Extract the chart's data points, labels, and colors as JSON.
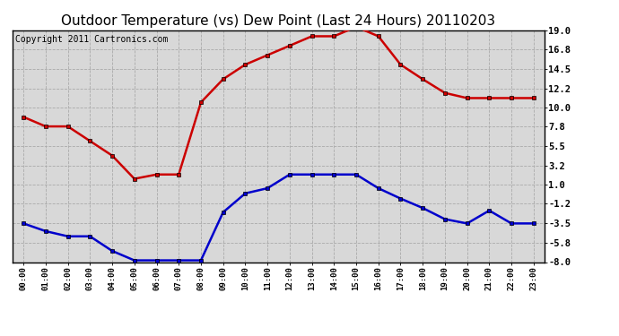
{
  "title": "Outdoor Temperature (vs) Dew Point (Last 24 Hours) 20110203",
  "copyright": "Copyright 2011 Cartronics.com",
  "x_labels": [
    "00:00",
    "01:00",
    "02:00",
    "03:00",
    "04:00",
    "05:00",
    "06:00",
    "07:00",
    "08:00",
    "09:00",
    "10:00",
    "11:00",
    "12:00",
    "13:00",
    "14:00",
    "15:00",
    "16:00",
    "17:00",
    "18:00",
    "19:00",
    "20:00",
    "21:00",
    "22:00",
    "23:00"
  ],
  "temp_values": [
    8.9,
    7.8,
    7.8,
    6.1,
    4.4,
    1.7,
    2.2,
    2.2,
    10.6,
    13.3,
    15.0,
    16.1,
    17.2,
    18.3,
    18.3,
    19.4,
    18.3,
    15.0,
    13.3,
    11.7,
    11.1,
    11.1,
    11.1,
    11.1
  ],
  "dew_values": [
    -3.5,
    -4.4,
    -5.0,
    -5.0,
    -6.7,
    -7.8,
    -7.8,
    -7.8,
    -7.8,
    -2.2,
    0.0,
    0.6,
    2.2,
    2.2,
    2.2,
    2.2,
    0.6,
    -0.6,
    -1.7,
    -3.0,
    -3.5,
    -2.0,
    -3.5,
    -3.5
  ],
  "temp_color": "#cc0000",
  "dew_color": "#0000cc",
  "background_color": "#d8d8d8",
  "grid_color": "#aaaaaa",
  "ylim": [
    -8.0,
    19.0
  ],
  "yticks": [
    19.0,
    16.8,
    14.5,
    12.2,
    10.0,
    7.8,
    5.5,
    3.2,
    1.0,
    -1.2,
    -3.5,
    -5.8,
    -8.0
  ],
  "title_fontsize": 11,
  "copyright_fontsize": 7,
  "marker": "s",
  "linewidth": 1.8,
  "markersize": 3.5
}
